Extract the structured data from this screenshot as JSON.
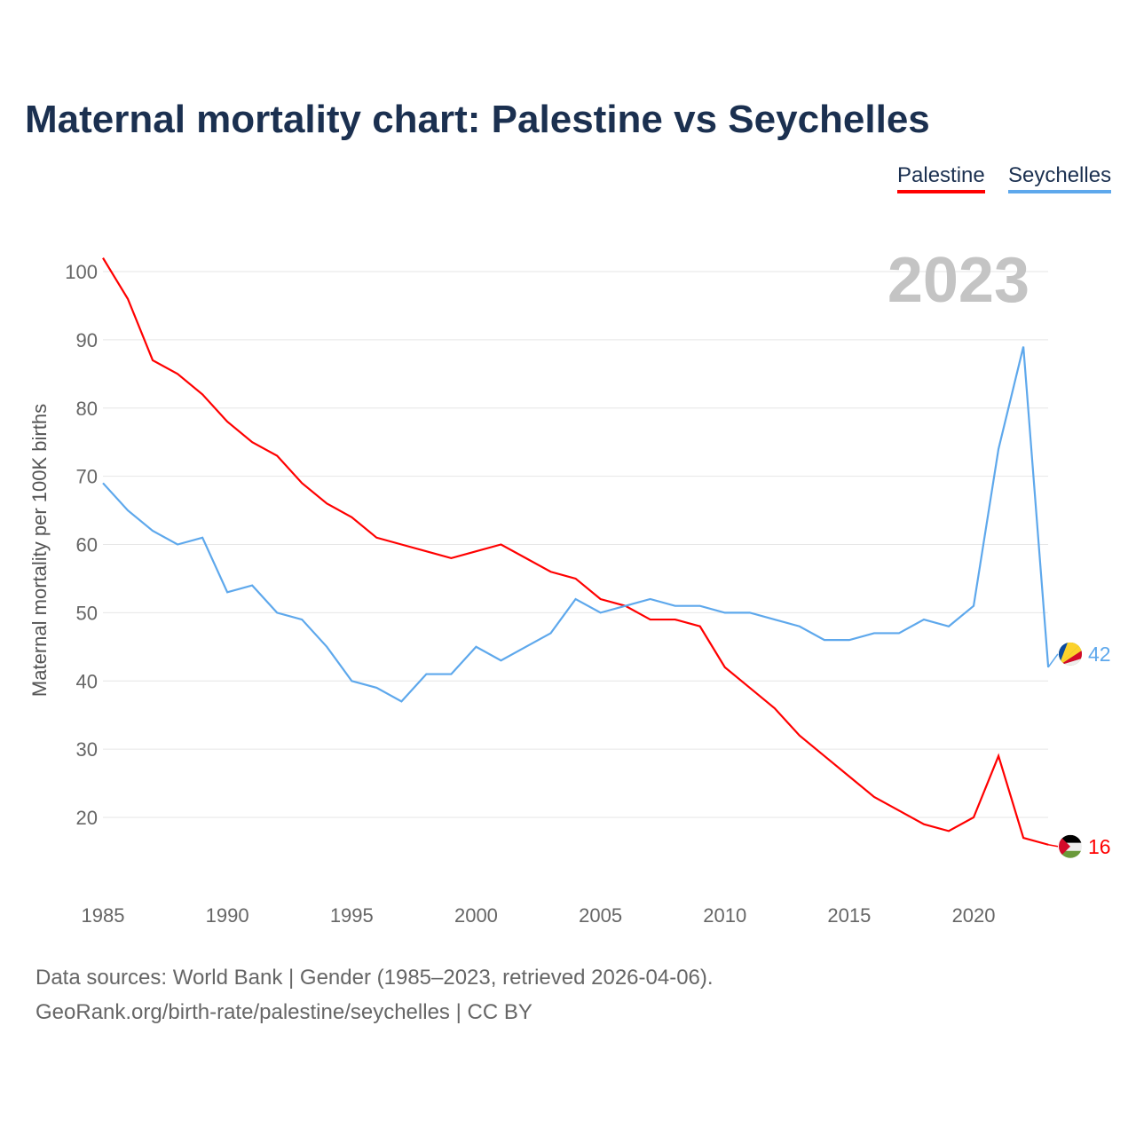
{
  "title": "Maternal mortality chart: Palestine vs Seychelles",
  "footer": {
    "line1": "Data sources: World Bank | Gender (1985–2023, retrieved 2026-04-06).",
    "line2": "GeoRank.org/birth-rate/palestine/seychelles | CC BY"
  },
  "chart_data": {
    "type": "line",
    "title": "Maternal mortality chart: Palestine vs Seychelles",
    "ylabel": "Maternal mortality per 100K births",
    "xlabel": "",
    "year_watermark": "2023",
    "ylim": [
      10,
      102
    ],
    "xlim": [
      1985,
      2023
    ],
    "yticks": [
      20,
      30,
      40,
      50,
      60,
      70,
      80,
      90,
      100
    ],
    "xticks": [
      1985,
      1990,
      1995,
      2000,
      2005,
      2010,
      2015,
      2020
    ],
    "grid": true,
    "legend_position": "top-right",
    "x": [
      1985,
      1986,
      1987,
      1988,
      1989,
      1990,
      1991,
      1992,
      1993,
      1994,
      1995,
      1996,
      1997,
      1998,
      1999,
      2000,
      2001,
      2002,
      2003,
      2004,
      2005,
      2006,
      2007,
      2008,
      2009,
      2010,
      2011,
      2012,
      2013,
      2014,
      2015,
      2016,
      2017,
      2018,
      2019,
      2020,
      2021,
      2022,
      2023
    ],
    "series": [
      {
        "name": "Palestine",
        "color": "#ff0000",
        "end_label": "16",
        "values": [
          102,
          96,
          87,
          85,
          82,
          78,
          75,
          73,
          69,
          66,
          64,
          61,
          60,
          59,
          58,
          59,
          60,
          58,
          56,
          55,
          52,
          51,
          49,
          49,
          48,
          42,
          39,
          36,
          32,
          29,
          26,
          23,
          21,
          19,
          18,
          20,
          29,
          17,
          16
        ]
      },
      {
        "name": "Seychelles",
        "color": "#5ea8ec",
        "end_label": "42",
        "values": [
          69,
          65,
          62,
          60,
          61,
          53,
          54,
          50,
          49,
          45,
          40,
          39,
          37,
          41,
          41,
          45,
          43,
          45,
          47,
          52,
          50,
          51,
          52,
          51,
          51,
          50,
          50,
          49,
          48,
          46,
          46,
          47,
          47,
          49,
          48,
          51,
          74,
          89,
          42
        ]
      }
    ]
  }
}
